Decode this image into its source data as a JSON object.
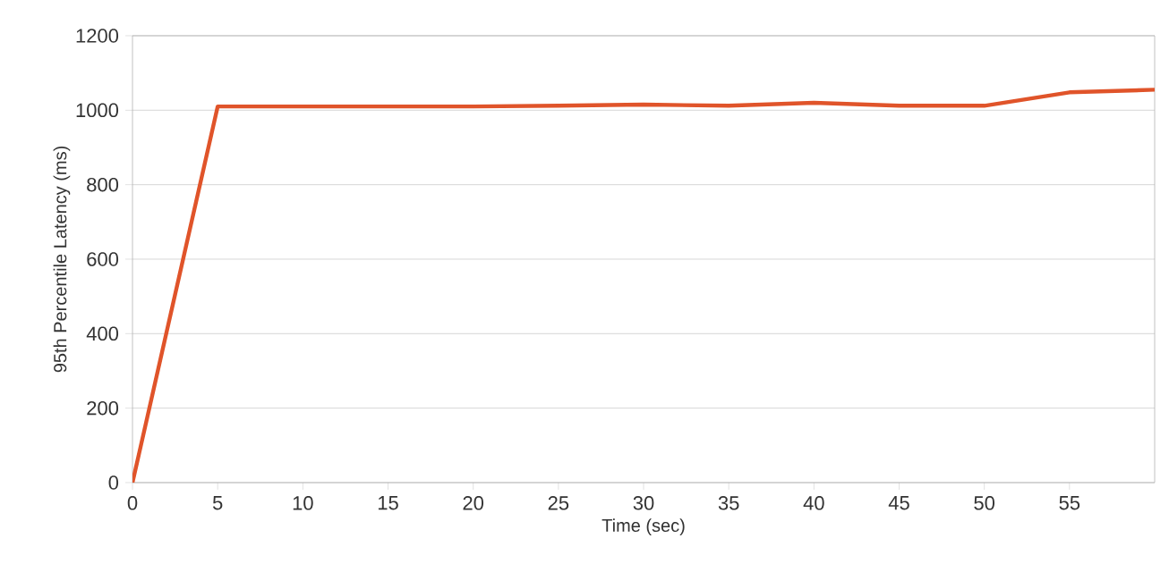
{
  "chart_data": {
    "type": "line",
    "xlabel": "Time (sec)",
    "ylabel": "95th Percentile Latency (ms)",
    "x": [
      0,
      5,
      10,
      15,
      20,
      25,
      30,
      35,
      40,
      45,
      50,
      55,
      60
    ],
    "series": [
      {
        "color": "#e0542a",
        "values": [
          0,
          1010,
          1010,
          1010,
          1010,
          1012,
          1015,
          1012,
          1020,
          1012,
          1012,
          1048,
          1055
        ]
      }
    ],
    "xlim": [
      0,
      60
    ],
    "xticks": [
      0,
      5,
      10,
      15,
      20,
      25,
      30,
      35,
      40,
      45,
      50,
      55
    ],
    "ylim": [
      0,
      1200
    ],
    "yticks": [
      0,
      200,
      400,
      600,
      800,
      1000,
      1200
    ],
    "grid": "y",
    "marker": "none",
    "line_style": "solid"
  }
}
